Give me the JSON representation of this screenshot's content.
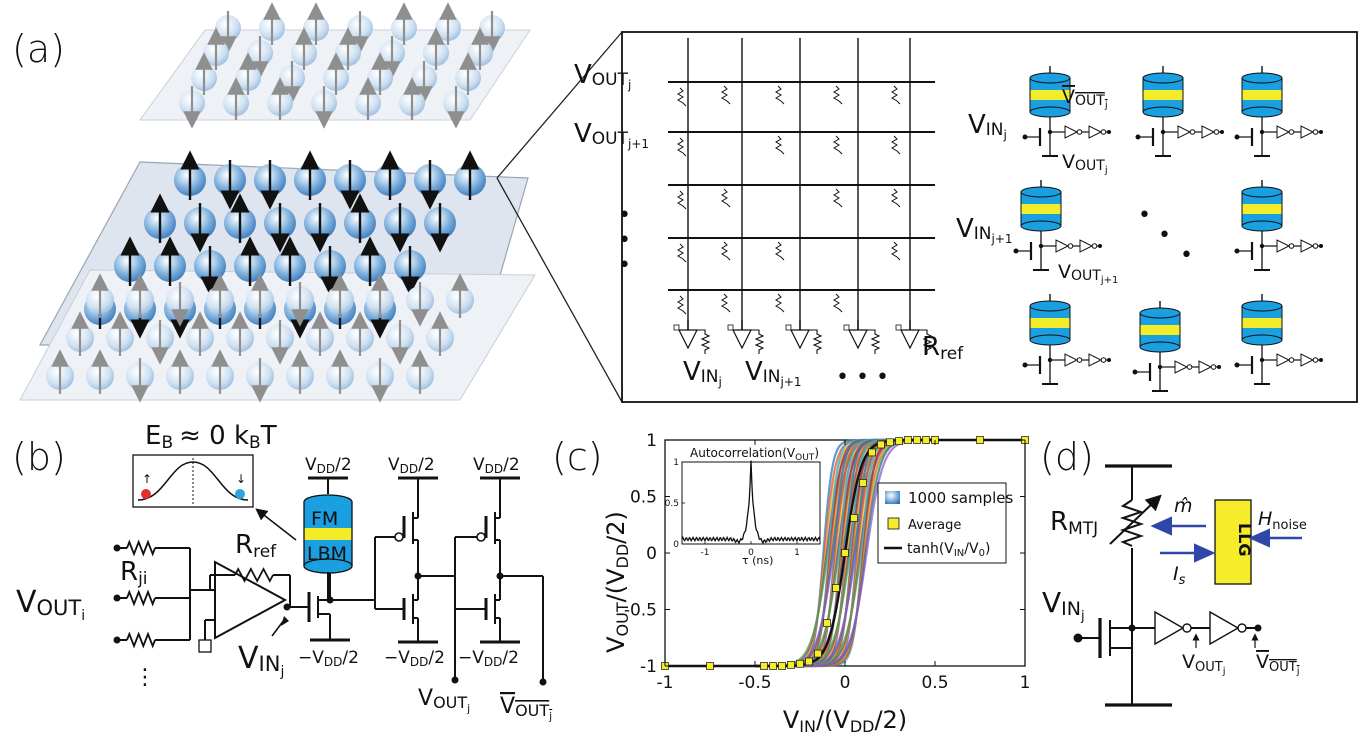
{
  "panels": {
    "a": {
      "label": "(a)",
      "crossbar": {
        "row_labels": [
          {
            "base": "V",
            "sub": "OUT",
            "subsub": "j"
          },
          {
            "base": "V",
            "sub": "OUT",
            "subsub": "j+1"
          }
        ],
        "column_labels": [
          {
            "base": "V",
            "sub": "IN",
            "subsub": "j"
          },
          {
            "base": "V",
            "sub": "IN",
            "subsub": "j+1"
          }
        ],
        "dots": "• • •",
        "r_ref": {
          "base": "R",
          "sub": "ref"
        }
      },
      "pbits": {
        "vin_j": {
          "base": "V",
          "sub": "IN",
          "subsub": "j"
        },
        "vout_j": {
          "base": "V",
          "sub": "OUT",
          "subsub": "j"
        },
        "vout_bar_j": {
          "base": "V",
          "sub": "OUT",
          "subsub": "j"
        },
        "vin_j1": {
          "base": "V",
          "sub": "IN",
          "subsub": "j+1"
        },
        "vout_j1": {
          "base": "V",
          "sub": "OUT",
          "subsub": "j+1"
        }
      },
      "colors": {
        "mtj_blue": "#1a9fe0",
        "mtj_yellow": "#f3ec2a",
        "spin_blue": "#3d7fc6",
        "plane": "#e8ecf2"
      }
    },
    "b": {
      "label": "(b)",
      "energy_barrier": "E",
      "energy_barrier_sub": "B",
      "energy_barrier_tail": "≈ 0  k",
      "energy_barrier_tail_sub": "B",
      "energy_barrier_T": "T",
      "fm_label": "FM",
      "lbm_label": "LBM",
      "vdd_half": "V",
      "vdd_sub": "DD",
      "vdd_frac": "/2",
      "neg_vdd": "−V",
      "r_ref": "R",
      "r_ref_sub": "ref",
      "r_ji": "R",
      "r_ji_sub": "ji",
      "vout_i": "V",
      "vout_i_sub": "OUT",
      "vout_i_subsub": "i",
      "vin_j": "V",
      "vin_j_sub": "IN",
      "vin_j_subsub": "j",
      "vout_j": "V",
      "vout_j_sub": "OUT",
      "vout_j_subsub": "j",
      "vdots": "⋮",
      "arrow_up": "↑",
      "arrow_down": "↓"
    },
    "c": {
      "label": "(c)",
      "ylabel_main": "V",
      "ylabel_sub": "OUT",
      "ylabel_tail": "/(V",
      "ylabel_sub2": "DD",
      "ylabel_end": "/2)",
      "xlabel_main": "V",
      "xlabel_sub": "IN",
      "xlabel_tail": "/(V",
      "xlabel_sub2": "DD",
      "xlabel_end": "/2)",
      "inset_title": "Autocorrelation(V",
      "inset_title_sub": "OUT",
      "inset_title_end": ")",
      "inset_xlabel": "τ (ns)",
      "legend": {
        "samples": "1000 samples",
        "average": "Average",
        "tanh_main": "tanh(V",
        "tanh_sub": "IN",
        "tanh_tail": "/V",
        "tanh_sub2": "0",
        "tanh_end": ")"
      }
    },
    "d": {
      "label": "(d)",
      "r_mtj": "R",
      "r_mtj_sub": "MTJ",
      "m_hat": "m̂",
      "i_s": "I",
      "i_s_sub": "s",
      "llg": "LLG",
      "h_noise": "H",
      "h_noise_sub": "noise",
      "vin_j": "V",
      "vin_j_sub": "IN",
      "vin_j_subsub": "j",
      "vout_j": "V",
      "vout_j_sub": "OUT",
      "vout_j_subsub": "j",
      "colors": {
        "llg_fill": "#f5ec2a",
        "arrow": "#2f48a8"
      }
    }
  },
  "chart_data": {
    "type": "line",
    "xlim": [
      -1,
      1
    ],
    "ylim": [
      -1,
      1
    ],
    "xticks": [
      -1,
      -0.5,
      0,
      0.5,
      1
    ],
    "yticks": [
      -1,
      -0.5,
      0,
      0.5,
      1
    ],
    "xtick_labels": [
      "-1",
      "-0.5",
      "0",
      "0.5",
      "1"
    ],
    "ytick_labels": [
      "-1",
      "-0.5",
      "0",
      "0.5",
      "1"
    ],
    "series": [
      {
        "name": "1000 samples",
        "kind": "band",
        "x_center": 0,
        "spread": 0.12
      },
      {
        "name": "Average",
        "kind": "markers",
        "x": [
          -1,
          -0.75,
          -0.45,
          -0.4,
          -0.35,
          -0.3,
          -0.25,
          -0.2,
          -0.15,
          -0.1,
          -0.05,
          0,
          0.05,
          0.1,
          0.15,
          0.2,
          0.25,
          0.3,
          0.35,
          0.4,
          0.45,
          0.5,
          0.75,
          1
        ],
        "y": [
          -1,
          -1,
          -1,
          -1,
          -1,
          -0.99,
          -0.98,
          -0.96,
          -0.89,
          -0.62,
          -0.31,
          0,
          0.31,
          0.62,
          0.89,
          0.96,
          0.98,
          0.99,
          1,
          1,
          1,
          1,
          1,
          1
        ]
      },
      {
        "name": "tanh(VIN/V0)",
        "kind": "line",
        "v0": 0.09
      }
    ],
    "inset": {
      "xlim": [
        -1.5,
        1.5
      ],
      "ylim": [
        0,
        1
      ],
      "xticks": [
        -1,
        0,
        1
      ],
      "yticks": [
        0,
        0.5,
        1
      ],
      "xtick_labels": [
        "-1",
        "0",
        "1"
      ],
      "ytick_labels": [
        "0",
        "0.5",
        "1"
      ]
    }
  }
}
